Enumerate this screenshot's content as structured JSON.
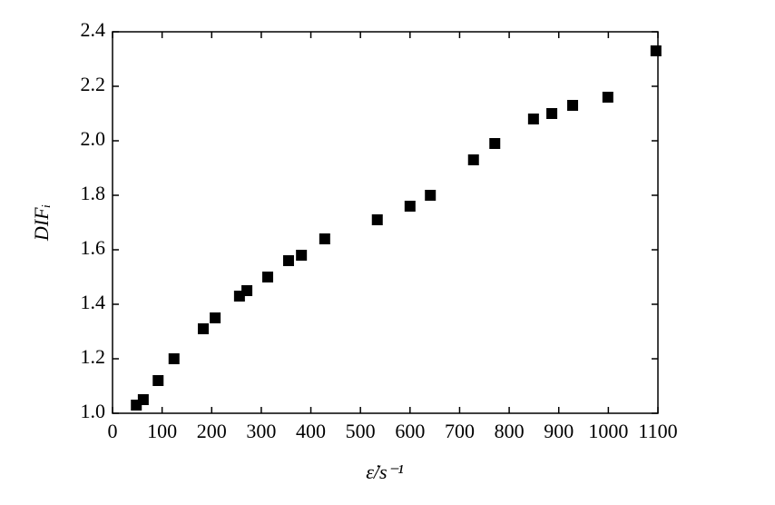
{
  "chart_data": {
    "type": "scatter",
    "x_label": "ε̇/s⁻¹",
    "y_label": "DIFᵢ",
    "color": "#000000",
    "series": [
      {
        "name": null,
        "color": "#000000",
        "x": [
          48,
          62,
          92,
          124,
          183,
          207,
          256,
          271,
          313,
          355,
          381,
          428,
          534,
          600,
          641,
          728,
          771,
          849,
          886,
          928,
          999,
          1096
        ],
        "values": [
          1.03,
          1.05,
          1.12,
          1.2,
          1.31,
          1.35,
          1.43,
          1.45,
          1.5,
          1.56,
          1.58,
          1.64,
          1.71,
          1.76,
          1.8,
          1.93,
          1.99,
          2.08,
          2.1,
          2.13,
          2.16,
          2.33
        ]
      }
    ],
    "xlim": [
      0,
      1100
    ],
    "xticks": [
      0,
      100,
      200,
      300,
      400,
      500,
      600,
      700,
      800,
      900,
      1000,
      1100
    ],
    "ylim": [
      1.0,
      2.4
    ],
    "yticks": [
      {
        "value": 1.0,
        "label": "1.0"
      },
      {
        "value": 1.2,
        "label": "1.2"
      },
      {
        "value": 1.4,
        "label": "1.4"
      },
      {
        "value": 1.6,
        "label": "1.6"
      },
      {
        "value": 1.8,
        "label": "1.8"
      },
      {
        "value": 2.0,
        "label": "2.0"
      },
      {
        "value": 2.2,
        "label": "2.2"
      },
      {
        "value": 2.4,
        "label": "2.4"
      }
    ],
    "grid": false
  }
}
